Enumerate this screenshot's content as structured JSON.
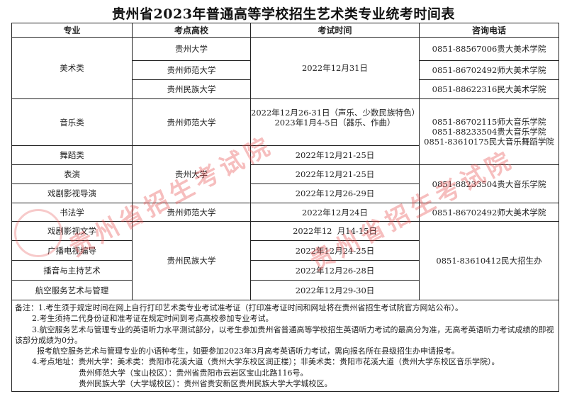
{
  "title": "贵州省2023年普通高等学校招生艺术类专业统考时间表",
  "headers": [
    "专业",
    "考点高校",
    "考试时间",
    "咨询电话"
  ],
  "rows": {
    "art": {
      "major": "美术类",
      "schools": [
        "贵州大学",
        "贵州师范大学",
        "贵州民族大学"
      ],
      "time": "2022年12月31日",
      "phones": [
        "0851-88567006贵大美术学院",
        "0851-86702492师大美术学院",
        "0851-88622316民大美术学院"
      ]
    },
    "music": {
      "major": "音乐类",
      "school": "贵州师范大学",
      "time": [
        "2022年12月26-31日（声乐、少数民族特色）",
        "2023年1月4-5日（器乐、作曲）"
      ],
      "phones": [
        "0851-86702115师大音乐学院",
        "0851-88233504贵大音乐学院",
        "0851-83610175民大音乐舞蹈学院"
      ]
    },
    "dance": {
      "major": "舞蹈类",
      "time": "2022年12月21-25日"
    },
    "gzu_school": "贵州大学",
    "acting": {
      "major": "表演",
      "time": "2022年12月21-25日"
    },
    "directing": {
      "major": "戏剧影视导演",
      "time": "2022年12月26-29日"
    },
    "gzu_phone": "0851-88233504贵大音乐学院",
    "calligraphy": {
      "major": "书法学",
      "school": "贵州师范大学",
      "time": "2022年12月24日",
      "phone": "0851-86702492师大美术学院"
    },
    "literature": {
      "major": "戏剧影视文学",
      "time": "2022年12  月14-15日"
    },
    "broadcast": {
      "major": "广播电视编导",
      "time": "2022年12月24-25日"
    },
    "hosting": {
      "major": "播音与主持艺术",
      "time": "2022年12月26-28日"
    },
    "aviation": {
      "major": "航空服务艺术与管理",
      "time": "2022年12月29-30日"
    },
    "gzmu_school": "贵州民族大学",
    "gzmu_phone": "0851-83610412民大招生办"
  },
  "notes": [
    "备注：1.考生须于规定时间在网上自行打印艺术类专业考试准考证（打印准考证时间和网址将在贵州省招生考试院官方网站公布）。",
    "2.考生须持二代身份证和准考证在规定时间到考点高校参加专业考试。",
    "3.航空服务艺术与管理专业的英语听力水平测试部分，以考生参加贵州省普通高等学校招生英语听力考试的最高分为准，无高考英语听力考试成绩的即视该部分成绩为0分。",
    "报考航空服务艺术与管理专业的小语种考生，如要参加2023年3月高考英语听力考试，需向报名所在县级招生办申请报考。",
    "4.考点地址：贵州大学：美术类：贵阳市花溪大道（贵州大学东校区润正楼）；非美术类：贵阳市花溪大道（贵州大学东校区音乐学院）。",
    "贵州师范大学（宝山校区）：贵州省贵阳市云岩区宝山北路116号。",
    "贵州民族大学（大学城校区）：贵州省贵安新区贵州民族大学大学城校区。"
  ],
  "watermark": "贵州省招生考试院",
  "colors": {
    "watermark": "#e64646",
    "border": "#222222"
  }
}
